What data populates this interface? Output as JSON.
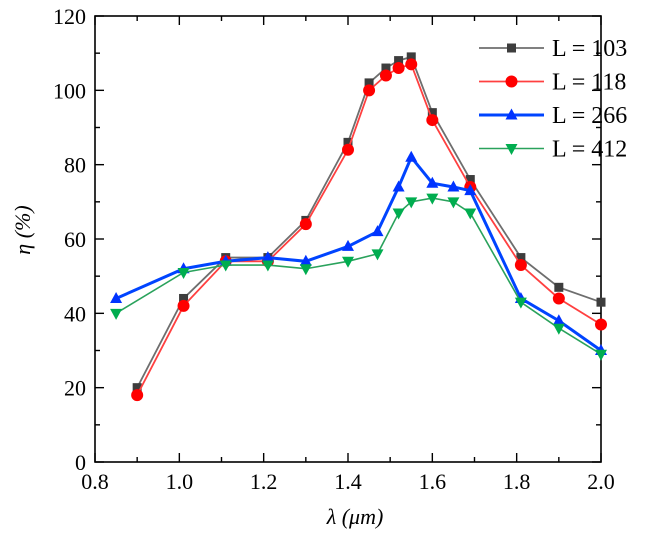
{
  "chart_data": {
    "type": "line",
    "title": "",
    "xlabel": "λ (μm)",
    "ylabel": "η (%)",
    "xlim": [
      0.8,
      2.0
    ],
    "ylim": [
      0,
      120
    ],
    "xticks": [
      0.8,
      1.0,
      1.2,
      1.4,
      1.6,
      1.8,
      2.0
    ],
    "yticks": [
      0,
      20,
      40,
      60,
      80,
      100,
      120
    ],
    "x_minor_step": 0.1,
    "y_minor_step": 10,
    "grid": false,
    "legend_position": "top-right",
    "axis_color": "#000000",
    "background_color": "#ffffff",
    "series": [
      {
        "name": "L = 103",
        "marker": "square",
        "line_color": "#6e6e6e",
        "marker_color": "#3d3d3d",
        "line_width": 1.8,
        "x": [
          0.9,
          1.01,
          1.11,
          1.21,
          1.3,
          1.4,
          1.45,
          1.49,
          1.52,
          1.55,
          1.6,
          1.69,
          1.81,
          1.9,
          2.0
        ],
        "y": [
          20,
          44,
          55,
          55,
          65,
          86,
          102,
          106,
          108,
          109,
          94,
          76,
          55,
          47,
          43
        ]
      },
      {
        "name": "L = 118",
        "marker": "circle",
        "line_color": "#ff4040",
        "marker_color": "#ff0000",
        "line_width": 1.8,
        "x": [
          0.9,
          1.01,
          1.11,
          1.21,
          1.3,
          1.4,
          1.45,
          1.49,
          1.52,
          1.55,
          1.6,
          1.69,
          1.81,
          1.9,
          2.0
        ],
        "y": [
          18,
          42,
          54,
          54,
          64,
          84,
          100,
          104,
          106,
          107,
          92,
          74,
          53,
          44,
          37
        ]
      },
      {
        "name": "L = 266",
        "marker": "triangle-up",
        "line_color": "#0044ff",
        "marker_color": "#0033ff",
        "line_width": 3,
        "x": [
          0.85,
          1.01,
          1.11,
          1.21,
          1.3,
          1.4,
          1.47,
          1.52,
          1.55,
          1.6,
          1.65,
          1.69,
          1.81,
          1.9,
          2.0
        ],
        "y": [
          44,
          52,
          54,
          55,
          54,
          58,
          62,
          74,
          82,
          75,
          74,
          73,
          44,
          38,
          30
        ]
      },
      {
        "name": "L = 412",
        "marker": "triangle-down",
        "line_color": "#2aa25c",
        "marker_color": "#00ad4f",
        "line_width": 1.6,
        "x": [
          0.85,
          1.01,
          1.11,
          1.21,
          1.3,
          1.4,
          1.47,
          1.52,
          1.55,
          1.6,
          1.65,
          1.69,
          1.81,
          1.9,
          2.0
        ],
        "y": [
          40,
          51,
          53,
          53,
          52,
          54,
          56,
          67,
          70,
          71,
          70,
          67,
          43,
          36,
          29
        ]
      }
    ]
  }
}
